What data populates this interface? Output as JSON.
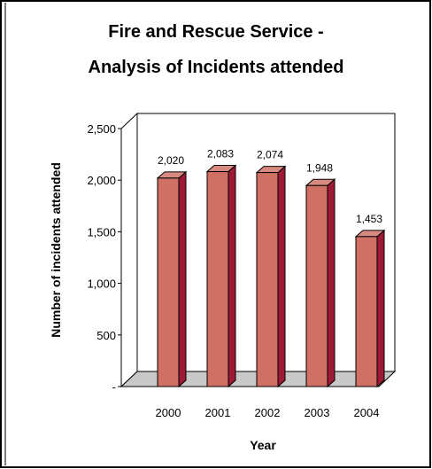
{
  "chart_data": {
    "type": "bar",
    "title_lines": [
      "Fire and Rescue Service -",
      "Analysis of Incidents attended"
    ],
    "xlabel": "Year",
    "ylabel": "Number of incidents attended",
    "categories": [
      "2000",
      "2001",
      "2002",
      "2003",
      "2004"
    ],
    "values": [
      2020,
      2083,
      2074,
      1948,
      1453
    ],
    "value_labels": [
      "2,020",
      "2,083",
      "2,074",
      "1,948",
      "1,453"
    ],
    "ylim": [
      0,
      2500
    ],
    "yticks": [
      {
        "value": 0,
        "label": "-"
      },
      {
        "value": 500,
        "label": "500"
      },
      {
        "value": 1000,
        "label": "1,000"
      },
      {
        "value": 1500,
        "label": "1,500"
      },
      {
        "value": 2000,
        "label": "2,000"
      },
      {
        "value": 2500,
        "label": "2,500"
      }
    ],
    "grid": false,
    "legend": "none",
    "bar_style": "3d",
    "colors": {
      "bar_front": "#d07065",
      "bar_side": "#9c1a36",
      "bar_top": "#d98a80",
      "floor": "#c8c8c8",
      "frame_border": "#000000"
    }
  }
}
